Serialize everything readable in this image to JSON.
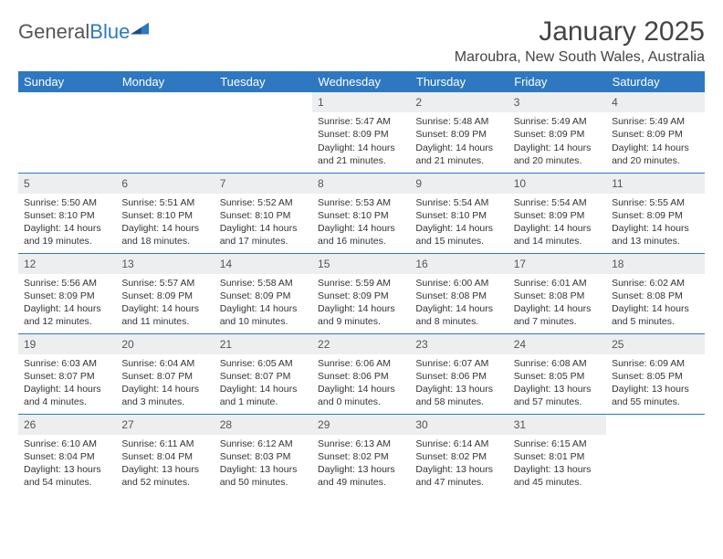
{
  "logo": {
    "part1": "General",
    "part2": "Blue",
    "color1": "#555555",
    "color2": "#2e78c2"
  },
  "title": "January 2025",
  "location": "Maroubra, New South Wales, Australia",
  "header_bg": "#2e78c2",
  "header_text": "#ffffff",
  "daynum_bg": "#edeeef",
  "rule_color": "#2e78c2",
  "day_names": [
    "Sunday",
    "Monday",
    "Tuesday",
    "Wednesday",
    "Thursday",
    "Friday",
    "Saturday"
  ],
  "weeks": [
    [
      null,
      null,
      null,
      {
        "n": "1",
        "sunrise": "5:47 AM",
        "sunset": "8:09 PM",
        "daylight": "14 hours and 21 minutes."
      },
      {
        "n": "2",
        "sunrise": "5:48 AM",
        "sunset": "8:09 PM",
        "daylight": "14 hours and 21 minutes."
      },
      {
        "n": "3",
        "sunrise": "5:49 AM",
        "sunset": "8:09 PM",
        "daylight": "14 hours and 20 minutes."
      },
      {
        "n": "4",
        "sunrise": "5:49 AM",
        "sunset": "8:09 PM",
        "daylight": "14 hours and 20 minutes."
      }
    ],
    [
      {
        "n": "5",
        "sunrise": "5:50 AM",
        "sunset": "8:10 PM",
        "daylight": "14 hours and 19 minutes."
      },
      {
        "n": "6",
        "sunrise": "5:51 AM",
        "sunset": "8:10 PM",
        "daylight": "14 hours and 18 minutes."
      },
      {
        "n": "7",
        "sunrise": "5:52 AM",
        "sunset": "8:10 PM",
        "daylight": "14 hours and 17 minutes."
      },
      {
        "n": "8",
        "sunrise": "5:53 AM",
        "sunset": "8:10 PM",
        "daylight": "14 hours and 16 minutes."
      },
      {
        "n": "9",
        "sunrise": "5:54 AM",
        "sunset": "8:10 PM",
        "daylight": "14 hours and 15 minutes."
      },
      {
        "n": "10",
        "sunrise": "5:54 AM",
        "sunset": "8:09 PM",
        "daylight": "14 hours and 14 minutes."
      },
      {
        "n": "11",
        "sunrise": "5:55 AM",
        "sunset": "8:09 PM",
        "daylight": "14 hours and 13 minutes."
      }
    ],
    [
      {
        "n": "12",
        "sunrise": "5:56 AM",
        "sunset": "8:09 PM",
        "daylight": "14 hours and 12 minutes."
      },
      {
        "n": "13",
        "sunrise": "5:57 AM",
        "sunset": "8:09 PM",
        "daylight": "14 hours and 11 minutes."
      },
      {
        "n": "14",
        "sunrise": "5:58 AM",
        "sunset": "8:09 PM",
        "daylight": "14 hours and 10 minutes."
      },
      {
        "n": "15",
        "sunrise": "5:59 AM",
        "sunset": "8:09 PM",
        "daylight": "14 hours and 9 minutes."
      },
      {
        "n": "16",
        "sunrise": "6:00 AM",
        "sunset": "8:08 PM",
        "daylight": "14 hours and 8 minutes."
      },
      {
        "n": "17",
        "sunrise": "6:01 AM",
        "sunset": "8:08 PM",
        "daylight": "14 hours and 7 minutes."
      },
      {
        "n": "18",
        "sunrise": "6:02 AM",
        "sunset": "8:08 PM",
        "daylight": "14 hours and 5 minutes."
      }
    ],
    [
      {
        "n": "19",
        "sunrise": "6:03 AM",
        "sunset": "8:07 PM",
        "daylight": "14 hours and 4 minutes."
      },
      {
        "n": "20",
        "sunrise": "6:04 AM",
        "sunset": "8:07 PM",
        "daylight": "14 hours and 3 minutes."
      },
      {
        "n": "21",
        "sunrise": "6:05 AM",
        "sunset": "8:07 PM",
        "daylight": "14 hours and 1 minute."
      },
      {
        "n": "22",
        "sunrise": "6:06 AM",
        "sunset": "8:06 PM",
        "daylight": "14 hours and 0 minutes."
      },
      {
        "n": "23",
        "sunrise": "6:07 AM",
        "sunset": "8:06 PM",
        "daylight": "13 hours and 58 minutes."
      },
      {
        "n": "24",
        "sunrise": "6:08 AM",
        "sunset": "8:05 PM",
        "daylight": "13 hours and 57 minutes."
      },
      {
        "n": "25",
        "sunrise": "6:09 AM",
        "sunset": "8:05 PM",
        "daylight": "13 hours and 55 minutes."
      }
    ],
    [
      {
        "n": "26",
        "sunrise": "6:10 AM",
        "sunset": "8:04 PM",
        "daylight": "13 hours and 54 minutes."
      },
      {
        "n": "27",
        "sunrise": "6:11 AM",
        "sunset": "8:04 PM",
        "daylight": "13 hours and 52 minutes."
      },
      {
        "n": "28",
        "sunrise": "6:12 AM",
        "sunset": "8:03 PM",
        "daylight": "13 hours and 50 minutes."
      },
      {
        "n": "29",
        "sunrise": "6:13 AM",
        "sunset": "8:02 PM",
        "daylight": "13 hours and 49 minutes."
      },
      {
        "n": "30",
        "sunrise": "6:14 AM",
        "sunset": "8:02 PM",
        "daylight": "13 hours and 47 minutes."
      },
      {
        "n": "31",
        "sunrise": "6:15 AM",
        "sunset": "8:01 PM",
        "daylight": "13 hours and 45 minutes."
      },
      null
    ]
  ],
  "labels": {
    "sunrise": "Sunrise:",
    "sunset": "Sunset:",
    "daylight": "Daylight:"
  }
}
